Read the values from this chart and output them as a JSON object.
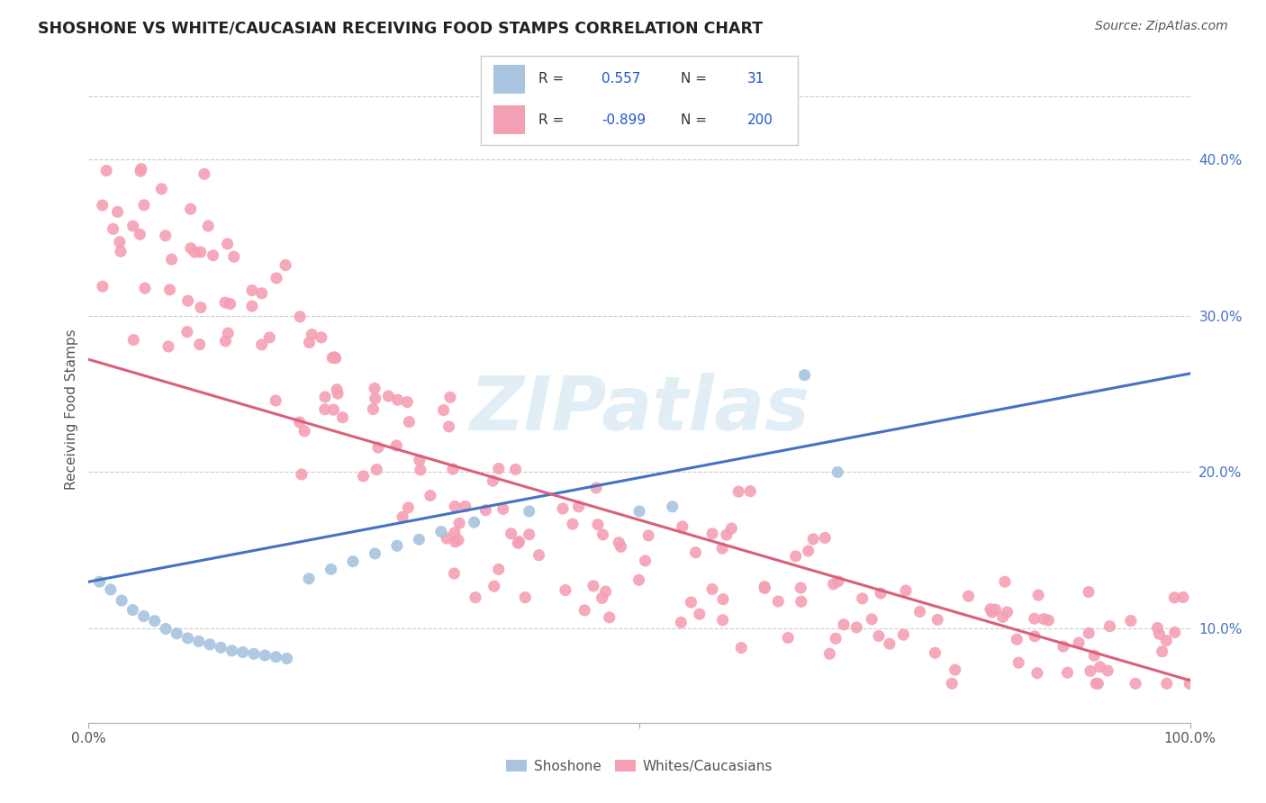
{
  "title": "SHOSHONE VS WHITE/CAUCASIAN RECEIVING FOOD STAMPS CORRELATION CHART",
  "source": "Source: ZipAtlas.com",
  "ylabel": "Receiving Food Stamps",
  "yticks": [
    "10.0%",
    "20.0%",
    "30.0%",
    "40.0%"
  ],
  "ytick_vals": [
    0.1,
    0.2,
    0.3,
    0.4
  ],
  "xlim": [
    0.0,
    1.0
  ],
  "ylim": [
    0.04,
    0.44
  ],
  "legend_R1": "0.557",
  "legend_N1": "31",
  "legend_R2": "-0.899",
  "legend_N2": "200",
  "shoshone_color": "#a8c4e0",
  "caucasian_color": "#f4a0b4",
  "shoshone_line_color": "#4472c4",
  "caucasian_line_color": "#d9607a",
  "background_color": "#ffffff",
  "grid_color": "#cccccc",
  "watermark": "ZIPatlas",
  "shoshone_line_x0": 0.0,
  "shoshone_line_y0": 0.13,
  "shoshone_line_x1": 1.0,
  "shoshone_line_y1": 0.263,
  "caucasian_line_x0": 0.0,
  "caucasian_line_y0": 0.272,
  "caucasian_line_x1": 1.0,
  "caucasian_line_y1": 0.067
}
